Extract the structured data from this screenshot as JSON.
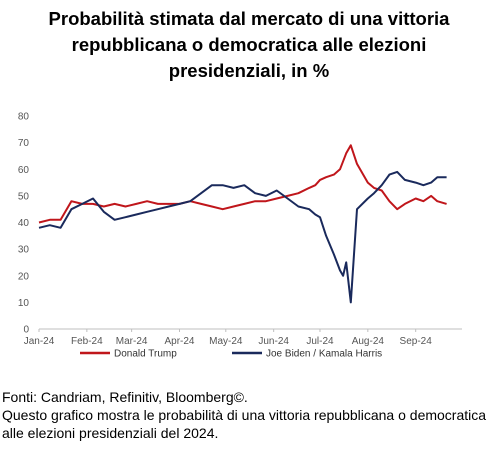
{
  "title_lines": [
    "Probabilità stimata dal mercato di una vittoria",
    "repubblicana o democratica alle elezioni",
    "presidenziali, in %"
  ],
  "footer": {
    "source": "Fonti: Candriam, Refinitiv, Bloomberg©.",
    "note": "Questo grafico mostra le probabilità di una vittoria repubblicana o democratica alle elezioni presidenziali del 2024."
  },
  "chart_data": {
    "type": "line",
    "title": "Probabilità stimata dal mercato di una vittoria repubblicana o democratica alle elezioni presidenziali, in %",
    "xlabel": "",
    "ylabel": "",
    "ylim": [
      0,
      80
    ],
    "yticks": [
      "0",
      "10",
      "20",
      "30",
      "40",
      "50",
      "60",
      "70",
      "80"
    ],
    "xticks": [
      "Jan-24",
      "Feb-24",
      "Mar-24",
      "Apr-24",
      "May-24",
      "Jun-24",
      "Jul-24",
      "Aug-24",
      "Sep-24"
    ],
    "grid": false,
    "legend_position": "bottom",
    "series": [
      {
        "name": "Donald Trump",
        "color": "#c0161b",
        "x": [
          "2024-01-01",
          "2024-01-08",
          "2024-01-15",
          "2024-01-22",
          "2024-01-29",
          "2024-02-05",
          "2024-02-12",
          "2024-02-19",
          "2024-02-26",
          "2024-03-04",
          "2024-03-11",
          "2024-03-18",
          "2024-03-25",
          "2024-04-01",
          "2024-04-08",
          "2024-04-15",
          "2024-04-22",
          "2024-04-29",
          "2024-05-06",
          "2024-05-13",
          "2024-05-20",
          "2024-05-27",
          "2024-06-03",
          "2024-06-10",
          "2024-06-17",
          "2024-06-24",
          "2024-06-28",
          "2024-07-01",
          "2024-07-05",
          "2024-07-10",
          "2024-07-14",
          "2024-07-16",
          "2024-07-18",
          "2024-07-21",
          "2024-07-25",
          "2024-08-01",
          "2024-08-05",
          "2024-08-10",
          "2024-08-15",
          "2024-08-20",
          "2024-08-25",
          "2024-09-01",
          "2024-09-06",
          "2024-09-11",
          "2024-09-15",
          "2024-09-21"
        ],
        "values": [
          40,
          41,
          41,
          48,
          47,
          47,
          46,
          47,
          46,
          47,
          48,
          47,
          47,
          47,
          48,
          47,
          46,
          45,
          46,
          47,
          48,
          48,
          49,
          50,
          51,
          53,
          54,
          56,
          57,
          58,
          60,
          63,
          66,
          69,
          62,
          55,
          53,
          52,
          48,
          45,
          47,
          49,
          48,
          50,
          48,
          47
        ]
      },
      {
        "name": "Joe Biden / Kamala Harris",
        "color": "#1a2a5c",
        "x": [
          "2024-01-01",
          "2024-01-08",
          "2024-01-15",
          "2024-01-22",
          "2024-01-29",
          "2024-02-05",
          "2024-02-12",
          "2024-02-19",
          "2024-02-26",
          "2024-03-04",
          "2024-03-11",
          "2024-03-18",
          "2024-03-25",
          "2024-04-01",
          "2024-04-08",
          "2024-04-15",
          "2024-04-22",
          "2024-04-29",
          "2024-05-06",
          "2024-05-13",
          "2024-05-20",
          "2024-05-27",
          "2024-06-03",
          "2024-06-10",
          "2024-06-17",
          "2024-06-24",
          "2024-06-28",
          "2024-07-01",
          "2024-07-05",
          "2024-07-10",
          "2024-07-14",
          "2024-07-16",
          "2024-07-18",
          "2024-07-21",
          "2024-07-25",
          "2024-08-01",
          "2024-08-05",
          "2024-08-10",
          "2024-08-15",
          "2024-08-20",
          "2024-08-25",
          "2024-09-01",
          "2024-09-06",
          "2024-09-11",
          "2024-09-15",
          "2024-09-21"
        ],
        "values": [
          38,
          39,
          38,
          45,
          47,
          49,
          44,
          41,
          42,
          43,
          44,
          45,
          46,
          47,
          48,
          51,
          54,
          54,
          53,
          54,
          51,
          50,
          52,
          49,
          46,
          45,
          43,
          42,
          35,
          28,
          22,
          20,
          25,
          10,
          45,
          49,
          51,
          54,
          58,
          59,
          56,
          55,
          54,
          55,
          57,
          57
        ]
      }
    ]
  }
}
